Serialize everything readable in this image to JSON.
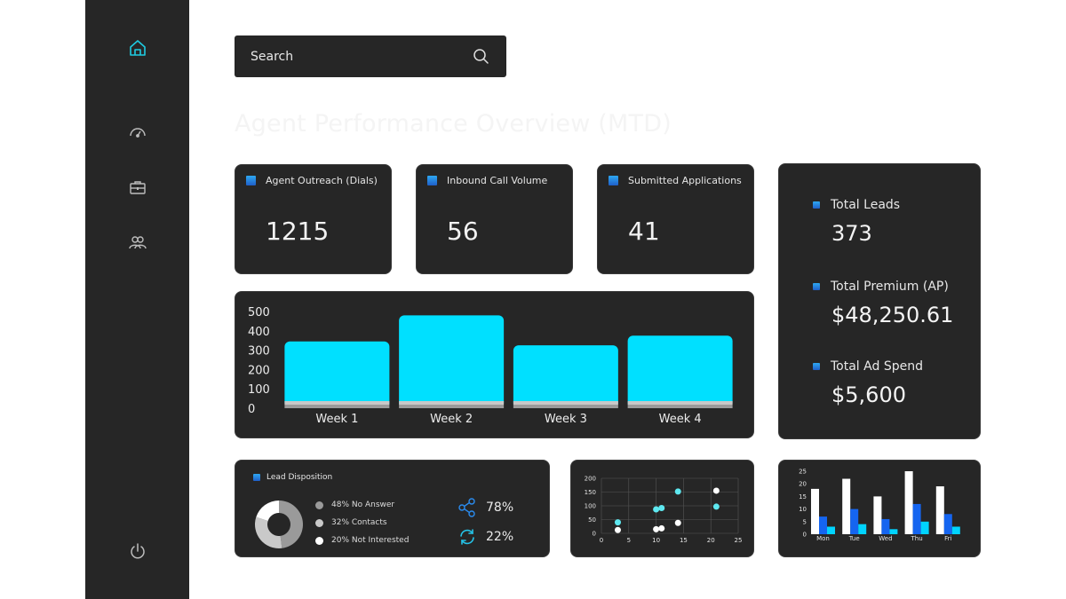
{
  "sidebar": {
    "items": [
      {
        "name": "home-icon"
      },
      {
        "name": "speedometer-icon"
      },
      {
        "name": "briefcase-icon"
      },
      {
        "name": "users-icon"
      },
      {
        "name": "power-icon"
      }
    ]
  },
  "search": {
    "label": "Search",
    "icon": "search-icon"
  },
  "page": {
    "title": "Agent Performance Overview (MTD)"
  },
  "metrics": [
    {
      "label": "Agent Outreach (Dials)",
      "value": "1215"
    },
    {
      "label": "Inbound Call Volume",
      "value": "56"
    },
    {
      "label": "Submitted Applications",
      "value": "41"
    }
  ],
  "kpis": [
    {
      "label": "Total Leads",
      "value": "373"
    },
    {
      "label": "Total Premium (AP)",
      "value": "$48,250.61"
    },
    {
      "label": "Total Ad Spend",
      "value": "$5,600"
    }
  ],
  "colors": {
    "accent": "#00e0ff",
    "panel": "#262626",
    "blue": "#1565f0",
    "cyan": "#00d4ff",
    "teal_dot": "#5ee8f0"
  },
  "chart_data": [
    {
      "type": "bar",
      "categories": [
        "Week 1",
        "Week 2",
        "Week 3",
        "Week 4"
      ],
      "values": [
        345,
        480,
        325,
        375
      ],
      "ylim": [
        0,
        500
      ],
      "yticks": [
        0,
        100,
        200,
        300,
        400,
        500
      ],
      "grid": false
    },
    {
      "type": "pie",
      "title": "Lead Disposition",
      "slices": [
        {
          "label": "48% No Answer",
          "value": 48,
          "color": "#9a9a9a"
        },
        {
          "label": "32% Contacts",
          "value": 32,
          "color": "#c9c9c9"
        },
        {
          "label": "20% Not Interested",
          "value": 20,
          "color": "#ffffff"
        }
      ],
      "stats": [
        {
          "icon": "share-icon",
          "value": "78%"
        },
        {
          "icon": "refresh-icon",
          "value": "22%"
        }
      ]
    },
    {
      "type": "scatter",
      "xlim": [
        0,
        25
      ],
      "ylim": [
        0,
        200
      ],
      "xticks": [
        0,
        5,
        10,
        15,
        20,
        25
      ],
      "yticks": [
        0,
        50,
        100,
        150,
        200
      ],
      "grid": true,
      "series": [
        {
          "color": "#5ee8f0",
          "points": [
            [
              3,
              40
            ],
            [
              10,
              87
            ],
            [
              11,
              92
            ],
            [
              14,
              152
            ],
            [
              21,
              97
            ]
          ]
        },
        {
          "color": "#ffffff",
          "points": [
            [
              3,
              12
            ],
            [
              10,
              15
            ],
            [
              11,
              18
            ],
            [
              14,
              38
            ],
            [
              21,
              155
            ]
          ]
        }
      ]
    },
    {
      "type": "bar",
      "categories": [
        "Mon",
        "Tue",
        "Wed",
        "Thu",
        "Fri"
      ],
      "ylim": [
        0,
        25
      ],
      "yticks": [
        0,
        5,
        10,
        15,
        20,
        25
      ],
      "series": [
        {
          "color": "#ffffff",
          "values": [
            18,
            22,
            15,
            25,
            19
          ]
        },
        {
          "color": "#1565f0",
          "values": [
            7,
            10,
            6,
            12,
            8
          ]
        },
        {
          "color": "#00d4ff",
          "values": [
            3,
            4,
            2,
            5,
            3
          ]
        }
      ]
    }
  ]
}
